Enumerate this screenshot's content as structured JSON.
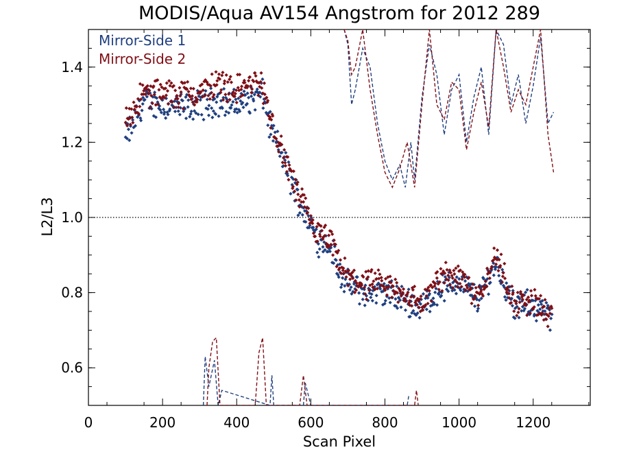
{
  "chart_data": {
    "type": "scatter",
    "title": "MODIS/Aqua AV154 Angstrom for 2012 289",
    "xlabel": "Scan Pixel",
    "ylabel": "L2/L3",
    "xlim": [
      0,
      1354
    ],
    "ylim": [
      0.5,
      1.5
    ],
    "x_ticks": [
      "0",
      "200",
      "400",
      "600",
      "800",
      "1000",
      "1200"
    ],
    "y_ticks": [
      "0.6",
      "0.8",
      "1.0",
      "1.2",
      "1.4"
    ],
    "reference_line": {
      "y": 1.0,
      "style": "dotted"
    },
    "legend_position": "top-left",
    "series": [
      {
        "name": "Mirror-Side 1",
        "color": "#1f3f7f",
        "points_profile": [
          [
            100,
            1.21
          ],
          [
            150,
            1.31
          ],
          [
            200,
            1.3
          ],
          [
            250,
            1.29
          ],
          [
            300,
            1.3
          ],
          [
            350,
            1.31
          ],
          [
            400,
            1.3
          ],
          [
            450,
            1.32
          ],
          [
            470,
            1.33
          ],
          [
            490,
            1.24
          ],
          [
            520,
            1.17
          ],
          [
            550,
            1.09
          ],
          [
            570,
            1.04
          ],
          [
            600,
            0.98
          ],
          [
            620,
            0.94
          ],
          [
            650,
            0.93
          ],
          [
            680,
            0.85
          ],
          [
            700,
            0.82
          ],
          [
            750,
            0.8
          ],
          [
            800,
            0.8
          ],
          [
            850,
            0.78
          ],
          [
            900,
            0.76
          ],
          [
            950,
            0.81
          ],
          [
            1000,
            0.83
          ],
          [
            1050,
            0.78
          ],
          [
            1100,
            0.88
          ],
          [
            1150,
            0.76
          ],
          [
            1200,
            0.77
          ],
          [
            1250,
            0.73
          ]
        ],
        "spread": 0.03
      },
      {
        "name": "Mirror-Side 2",
        "color": "#7f0f16",
        "points_profile": [
          [
            100,
            1.26
          ],
          [
            150,
            1.33
          ],
          [
            200,
            1.33
          ],
          [
            250,
            1.33
          ],
          [
            300,
            1.33
          ],
          [
            350,
            1.36
          ],
          [
            400,
            1.34
          ],
          [
            450,
            1.36
          ],
          [
            470,
            1.35
          ],
          [
            490,
            1.26
          ],
          [
            520,
            1.18
          ],
          [
            550,
            1.1
          ],
          [
            570,
            1.05
          ],
          [
            600,
            0.99
          ],
          [
            620,
            0.95
          ],
          [
            650,
            0.94
          ],
          [
            680,
            0.87
          ],
          [
            700,
            0.84
          ],
          [
            750,
            0.82
          ],
          [
            800,
            0.82
          ],
          [
            850,
            0.8
          ],
          [
            900,
            0.77
          ],
          [
            950,
            0.84
          ],
          [
            1000,
            0.85
          ],
          [
            1050,
            0.79
          ],
          [
            1100,
            0.9
          ],
          [
            1150,
            0.77
          ],
          [
            1200,
            0.78
          ],
          [
            1250,
            0.73
          ]
        ],
        "spread": 0.03
      }
    ],
    "dashed_traces": [
      {
        "color": "#1f3f7f",
        "upper": [
          [
            690,
            1.5
          ],
          [
            700,
            1.46
          ],
          [
            710,
            1.3
          ],
          [
            720,
            1.34
          ],
          [
            740,
            1.45
          ],
          [
            760,
            1.4
          ],
          [
            780,
            1.25
          ],
          [
            800,
            1.15
          ],
          [
            820,
            1.1
          ],
          [
            840,
            1.14
          ],
          [
            855,
            1.08
          ],
          [
            870,
            1.2
          ],
          [
            880,
            1.1
          ],
          [
            900,
            1.32
          ],
          [
            920,
            1.46
          ],
          [
            940,
            1.38
          ],
          [
            960,
            1.22
          ],
          [
            980,
            1.34
          ],
          [
            1000,
            1.38
          ],
          [
            1020,
            1.2
          ],
          [
            1040,
            1.32
          ],
          [
            1060,
            1.4
          ],
          [
            1080,
            1.22
          ],
          [
            1100,
            1.5
          ],
          [
            1120,
            1.46
          ],
          [
            1140,
            1.3
          ],
          [
            1160,
            1.38
          ],
          [
            1180,
            1.25
          ],
          [
            1200,
            1.35
          ],
          [
            1220,
            1.48
          ],
          [
            1240,
            1.25
          ],
          [
            1255,
            1.28
          ]
        ],
        "lower": [
          [
            310,
            0.5
          ],
          [
            315,
            0.63
          ],
          [
            325,
            0.55
          ],
          [
            340,
            0.62
          ],
          [
            350,
            0.5
          ],
          [
            360,
            0.54
          ],
          [
            490,
            0.5
          ],
          [
            495,
            0.58
          ],
          [
            500,
            0.5
          ],
          [
            580,
            0.5
          ],
          [
            585,
            0.56
          ],
          [
            600,
            0.5
          ],
          [
            860,
            0.5
          ],
          [
            865,
            0.53
          ]
        ]
      },
      {
        "color": "#7f0f16",
        "upper": [
          [
            690,
            1.5
          ],
          [
            700,
            1.47
          ],
          [
            710,
            1.38
          ],
          [
            720,
            1.4
          ],
          [
            740,
            1.5
          ],
          [
            760,
            1.34
          ],
          [
            780,
            1.22
          ],
          [
            800,
            1.12
          ],
          [
            820,
            1.08
          ],
          [
            840,
            1.13
          ],
          [
            860,
            1.2
          ],
          [
            880,
            1.08
          ],
          [
            900,
            1.3
          ],
          [
            920,
            1.5
          ],
          [
            940,
            1.3
          ],
          [
            960,
            1.26
          ],
          [
            980,
            1.36
          ],
          [
            1000,
            1.34
          ],
          [
            1020,
            1.18
          ],
          [
            1040,
            1.28
          ],
          [
            1060,
            1.36
          ],
          [
            1080,
            1.24
          ],
          [
            1100,
            1.5
          ],
          [
            1120,
            1.4
          ],
          [
            1140,
            1.28
          ],
          [
            1160,
            1.34
          ],
          [
            1180,
            1.3
          ],
          [
            1200,
            1.4
          ],
          [
            1220,
            1.5
          ],
          [
            1240,
            1.22
          ],
          [
            1255,
            1.12
          ]
        ],
        "lower": [
          [
            320,
            0.5
          ],
          [
            325,
            0.6
          ],
          [
            335,
            0.67
          ],
          [
            345,
            0.68
          ],
          [
            355,
            0.5
          ],
          [
            450,
            0.5
          ],
          [
            460,
            0.64
          ],
          [
            470,
            0.68
          ],
          [
            480,
            0.5
          ],
          [
            570,
            0.5
          ],
          [
            580,
            0.58
          ],
          [
            590,
            0.5
          ],
          [
            880,
            0.5
          ],
          [
            885,
            0.54
          ],
          [
            890,
            0.5
          ]
        ]
      }
    ]
  }
}
